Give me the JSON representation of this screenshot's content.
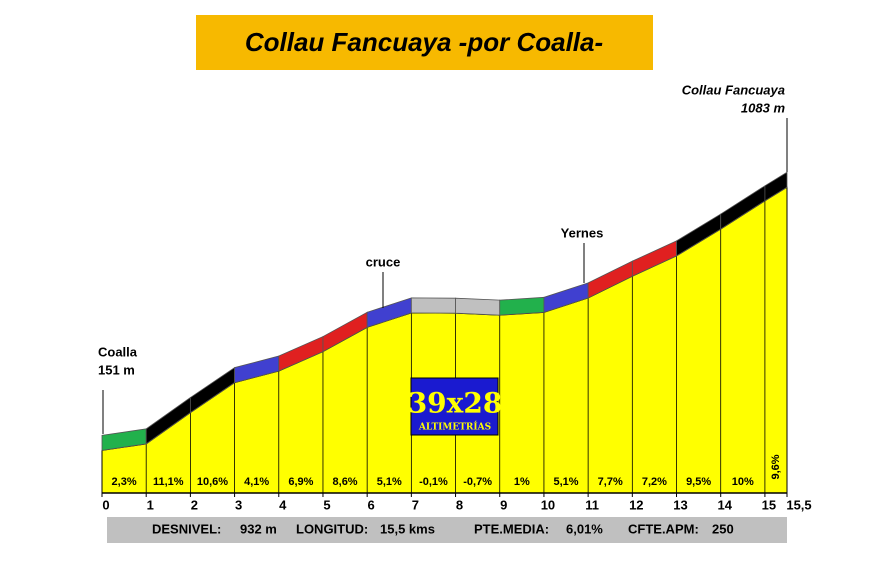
{
  "chart_data": {
    "type": "profile",
    "title": "Collau Fancuaya -por Coalla-",
    "x": [
      0,
      1,
      2,
      3,
      4,
      5,
      6,
      7,
      8,
      9,
      10,
      11,
      12,
      13,
      14,
      15,
      15.5
    ],
    "xticks": [
      0,
      1,
      2,
      3,
      4,
      5,
      6,
      7,
      8,
      9,
      10,
      11,
      12,
      13,
      14,
      15,
      {
        "value": 15.5,
        "label": "15,5"
      }
    ],
    "xlim": [
      0,
      15.5
    ],
    "ylim": [
      0,
      1300
    ],
    "elevations": [
      151,
      174,
      285,
      391,
      432,
      501,
      587,
      638,
      637,
      630,
      640,
      691,
      768,
      840,
      935,
      1035,
      1083
    ],
    "gradients": [
      2.3,
      11.1,
      10.6,
      4.1,
      6.9,
      8.6,
      5.1,
      -0.1,
      -0.7,
      1,
      5.1,
      7.7,
      7.2,
      9.5,
      10,
      9.6
    ],
    "value_labels": [
      "2,3%",
      "11,1%",
      "10,6%",
      "4,1%",
      "6,9%",
      "8,6%",
      "5,1%",
      "-0,1%",
      "-0,7%",
      "1%",
      "5,1%",
      "7,7%",
      "7,2%",
      "9,5%",
      "10%",
      "9,6%"
    ],
    "segment_colors": [
      "#22b14c",
      "#000000",
      "#000000",
      "#4040d0",
      "#e02020",
      "#e02020",
      "#4040d0",
      "#c0c0c0",
      "#c0c0c0",
      "#22b14c",
      "#4040d0",
      "#e02020",
      "#e02020",
      "#000000",
      "#000000",
      "#000000"
    ],
    "fill_color": "#ffff00",
    "annotations": [
      "Coalla",
      "151 m",
      "cruce",
      "Yernes",
      "Collau Fancuaya",
      "1083 m"
    ],
    "logo": [
      "39x28",
      "ALTIMETRÍAS"
    ],
    "footer": [
      "DESNIVEL:",
      "932 m",
      "LONGITUD:",
      "15,5 kms",
      "PTE.MEDIA:",
      "6,01%",
      "CFTE.APM:",
      "250"
    ]
  }
}
